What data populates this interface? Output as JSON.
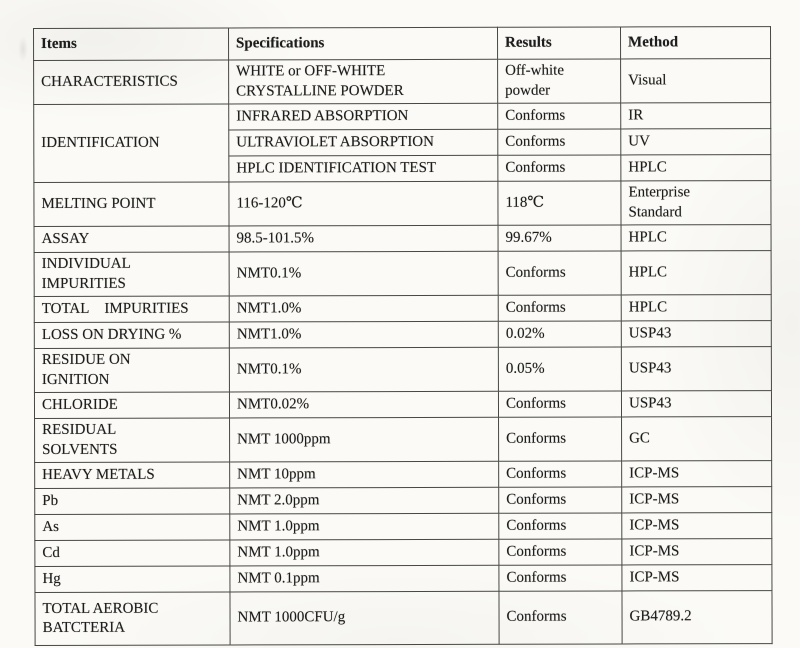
{
  "colors": {
    "paper": "#fbfaf6",
    "border": "#474743",
    "text": "#1d1d1d"
  },
  "table": {
    "headers": [
      "Items",
      "Specifications",
      "Results",
      "Method"
    ],
    "rows": [
      {
        "cells": [
          {
            "text": "CHARACTERISTICS"
          },
          {
            "text": "WHITE or OFF-WHITE\nCRYSTALLINE POWDER"
          },
          {
            "text": "Off-white\npowder"
          },
          {
            "text": "Visual"
          }
        ]
      },
      {
        "cells": [
          {
            "text": "IDENTIFICATION",
            "rowspan": 3
          },
          {
            "text": "INFRARED ABSORPTION"
          },
          {
            "text": "Conforms"
          },
          {
            "text": "IR"
          }
        ]
      },
      {
        "cells": [
          {
            "text": "ULTRAVIOLET ABSORPTION"
          },
          {
            "text": "Conforms"
          },
          {
            "text": "UV"
          }
        ]
      },
      {
        "cells": [
          {
            "text": "HPLC IDENTIFICATION TEST"
          },
          {
            "text": "Conforms"
          },
          {
            "text": "HPLC"
          }
        ]
      },
      {
        "cells": [
          {
            "text": "MELTING POINT"
          },
          {
            "text": "116-120℃"
          },
          {
            "text": "118℃"
          },
          {
            "text": "Enterprise\nStandard"
          }
        ]
      },
      {
        "cells": [
          {
            "text": "ASSAY"
          },
          {
            "text": "98.5-101.5%"
          },
          {
            "text": "99.67%"
          },
          {
            "text": "HPLC"
          }
        ]
      },
      {
        "cells": [
          {
            "text": "INDIVIDUAL\nIMPURITIES"
          },
          {
            "text": "NMT0.1%"
          },
          {
            "text": "Conforms"
          },
          {
            "text": "HPLC"
          }
        ]
      },
      {
        "cells": [
          {
            "text": "TOTAL    IMPURITIES"
          },
          {
            "text": "NMT1.0%"
          },
          {
            "text": "Conforms"
          },
          {
            "text": "HPLC"
          }
        ]
      },
      {
        "cells": [
          {
            "text": "LOSS ON DRYING %"
          },
          {
            "text": "NMT1.0%"
          },
          {
            "text": "0.02%"
          },
          {
            "text": "USP43"
          }
        ]
      },
      {
        "cells": [
          {
            "text": "RESIDUE ON\nIGNITION"
          },
          {
            "text": "NMT0.1%"
          },
          {
            "text": "0.05%"
          },
          {
            "text": "USP43"
          }
        ]
      },
      {
        "cells": [
          {
            "text": "CHLORIDE"
          },
          {
            "text": "NMT0.02%"
          },
          {
            "text": "Conforms"
          },
          {
            "text": "USP43"
          }
        ]
      },
      {
        "cells": [
          {
            "text": "RESIDUAL\nSOLVENTS"
          },
          {
            "text": "NMT 1000ppm"
          },
          {
            "text": "Conforms"
          },
          {
            "text": "GC"
          }
        ]
      },
      {
        "cells": [
          {
            "text": "HEAVY METALS"
          },
          {
            "text": "NMT 10ppm"
          },
          {
            "text": "Conforms"
          },
          {
            "text": "ICP-MS"
          }
        ]
      },
      {
        "cells": [
          {
            "text": "Pb"
          },
          {
            "text": "NMT 2.0ppm"
          },
          {
            "text": "Conforms"
          },
          {
            "text": "ICP-MS"
          }
        ]
      },
      {
        "cells": [
          {
            "text": "As"
          },
          {
            "text": "NMT 1.0ppm"
          },
          {
            "text": "Conforms"
          },
          {
            "text": "ICP-MS"
          }
        ]
      },
      {
        "cells": [
          {
            "text": "Cd"
          },
          {
            "text": "NMT 1.0ppm"
          },
          {
            "text": "Conforms"
          },
          {
            "text": "ICP-MS"
          }
        ]
      },
      {
        "cells": [
          {
            "text": "Hg"
          },
          {
            "text": "NMT 0.1ppm"
          },
          {
            "text": "Conforms"
          },
          {
            "text": "ICP-MS"
          }
        ]
      },
      {
        "cells": [
          {
            "text": "TOTAL AEROBIC\nBATCTERIA"
          },
          {
            "text": "NMT 1000CFU/g"
          },
          {
            "text": "Conforms"
          },
          {
            "text": "GB4789.2"
          }
        ]
      }
    ]
  }
}
